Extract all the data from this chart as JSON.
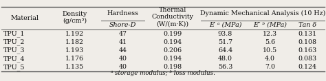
{
  "rows": [
    [
      "TPU_1",
      "1.192",
      "47",
      "0.199",
      "93.8",
      "12.3",
      "0.131"
    ],
    [
      "TPU_2",
      "1.182",
      "41",
      "0.194",
      "51.7",
      "5.6",
      "0.108"
    ],
    [
      "TPU_3",
      "1.193",
      "44",
      "0.206",
      "64.4",
      "10.5",
      "0.163"
    ],
    [
      "TPU_4",
      "1.176",
      "40",
      "0.194",
      "48.0",
      "4.0",
      "0.083"
    ],
    [
      "TPU_5",
      "1.135",
      "40",
      "0.198",
      "56.3",
      "7.0",
      "0.124"
    ]
  ],
  "footnote": "ᵃ storage modulus; ᵇ loss modulus.",
  "bg_color": "#f0ede8",
  "line_color": "#555555",
  "text_color": "#111111",
  "font_size": 6.8
}
